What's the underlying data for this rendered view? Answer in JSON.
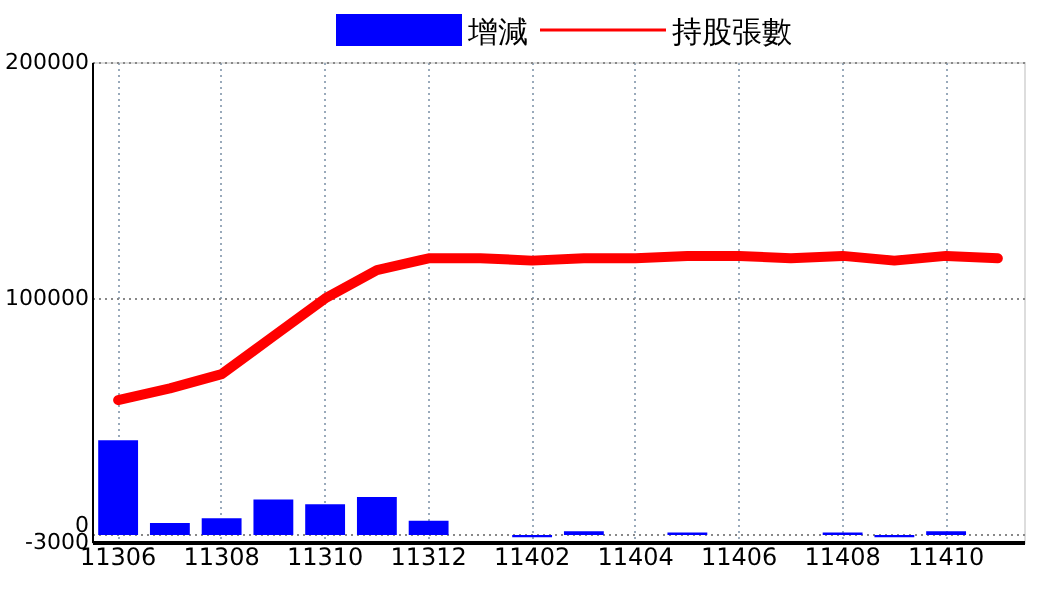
{
  "chart_data": {
    "type": "bar",
    "categories": [
      "11306",
      null,
      "11308",
      null,
      "11310",
      null,
      "11312",
      null,
      "11402",
      null,
      "11404",
      null,
      "11406",
      null,
      "11408",
      null,
      "11410",
      null
    ],
    "series": [
      {
        "name": "增減",
        "type": "bar",
        "color": "#0000ff",
        "values": [
          40000,
          5000,
          7000,
          15000,
          13000,
          16000,
          6000,
          0,
          -1000,
          1500,
          0,
          1000,
          0,
          0,
          1000,
          -1000,
          1500,
          0
        ]
      },
      {
        "name": "持股張數",
        "type": "line",
        "color": "#ff0000",
        "values": [
          57000,
          62000,
          68000,
          84000,
          100000,
          112000,
          117000,
          117000,
          116000,
          117000,
          117000,
          118000,
          118000,
          117000,
          118000,
          116000,
          118000,
          117000
        ]
      }
    ],
    "ylim": [
      -3000,
      200000
    ],
    "yticks": [
      -3000,
      0,
      100000,
      200000
    ],
    "grid": true,
    "legend": "top"
  }
}
